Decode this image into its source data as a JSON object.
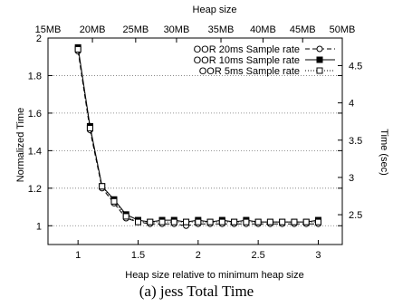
{
  "caption": "(a) jess Total Time",
  "chart_data": {
    "type": "line",
    "title": "",
    "xlabel": "Heap size relative to minimum heap size",
    "ylabel": "Normalized Time",
    "y2label": "Time (sec)",
    "x2label": "Heap size",
    "xlim": [
      0.75,
      3.2
    ],
    "ylim": [
      0.9,
      2.0
    ],
    "y2lim": [
      2.1,
      4.87
    ],
    "x_ticks": [
      1,
      1.5,
      2,
      2.5,
      3
    ],
    "x_tick_labels": [
      "1",
      "1.5",
      "2",
      "2.5",
      "3"
    ],
    "y_ticks": [
      1,
      1.2,
      1.4,
      1.6,
      1.8,
      2
    ],
    "y_tick_labels": [
      "1",
      "1.2",
      "1.4",
      "1.6",
      "1.8",
      "2"
    ],
    "y2_ticks": [
      2.5,
      3,
      3.5,
      4,
      4.5
    ],
    "y2_tick_labels": [
      "2.5",
      "3",
      "3.5",
      "4",
      "4.5"
    ],
    "x2_tick_labels": [
      "15MB",
      "20MB",
      "25MB",
      "30MB",
      "35MB",
      "40MB",
      "45MB",
      "50MB"
    ],
    "x2_tick_positions": [
      0.75,
      1.12,
      1.48,
      1.82,
      2.19,
      2.54,
      2.87,
      3.2
    ],
    "grid": "horizontal",
    "legend_position": "top-right",
    "x": [
      1,
      1.1,
      1.2,
      1.3,
      1.4,
      1.5,
      1.6,
      1.7,
      1.8,
      1.9,
      2,
      2.1,
      2.2,
      2.3,
      2.4,
      2.5,
      2.6,
      2.7,
      2.8,
      2.9,
      3
    ],
    "series": [
      {
        "name": "OOR 20ms Sample rate",
        "marker": "open-circle",
        "dash": "5,3",
        "values": [
          1.93,
          1.51,
          1.2,
          1.12,
          1.04,
          1.02,
          1.01,
          1.01,
          1.01,
          1.0,
          1.01,
          1.01,
          1.01,
          1.01,
          1.01,
          1.01,
          1.01,
          1.01,
          1.01,
          1.01,
          1.01
        ]
      },
      {
        "name": "OOR 10ms Sample rate",
        "marker": "filled-square",
        "dash": "",
        "values": [
          1.95,
          1.53,
          1.21,
          1.14,
          1.06,
          1.03,
          1.02,
          1.03,
          1.03,
          1.02,
          1.03,
          1.02,
          1.03,
          1.02,
          1.03,
          1.02,
          1.02,
          1.02,
          1.02,
          1.02,
          1.03
        ]
      },
      {
        "name": "OOR 5ms Sample rate",
        "marker": "open-square",
        "dash": "1,2",
        "values": [
          1.94,
          1.52,
          1.21,
          1.13,
          1.05,
          1.02,
          1.02,
          1.02,
          1.02,
          1.02,
          1.02,
          1.02,
          1.02,
          1.02,
          1.02,
          1.02,
          1.02,
          1.02,
          1.02,
          1.02,
          1.02
        ]
      }
    ]
  }
}
